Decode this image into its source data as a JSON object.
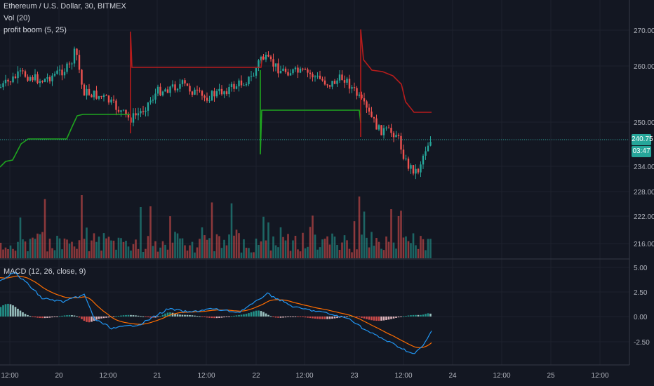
{
  "symbol_title": "Ethereum / U.S. Dollar, 30, BITMEX",
  "vol_label": "Vol (20)",
  "indicator_label": "profit boom (5, 25)",
  "macd_label": "MACD (12, 26, close, 9)",
  "last_price": "240.75",
  "countdown": "03:47",
  "colors": {
    "up": "#26a69a",
    "down": "#ef5350",
    "stop_red": "#b71c1c",
    "stop_green": "#1fa51f",
    "macd_line": "#2196f3",
    "signal_line": "#ff6d00",
    "price_line": "#26a69a"
  },
  "chart_data": {
    "type": "line",
    "price_axis": {
      "ticks": [
        "270.00",
        "260.00",
        "250.00",
        "240.00",
        "234.00",
        "228.00",
        "222.00",
        "216.00"
      ]
    },
    "macd_axis": {
      "ticks": [
        "5.00",
        "2.50",
        "0.00",
        "-2.50"
      ]
    },
    "time_axis": {
      "ticks": [
        "12:00",
        "20",
        "12:00",
        "21",
        "12:00",
        "22",
        "12:00",
        "23",
        "12:00",
        "24",
        "12:00",
        "25",
        "12:00"
      ]
    },
    "red_stop_line": {
      "levels": [
        259,
        259,
        254,
        246
      ]
    },
    "green_stop_line": {
      "levels": [
        226,
        236,
        240,
        246,
        248
      ]
    }
  }
}
